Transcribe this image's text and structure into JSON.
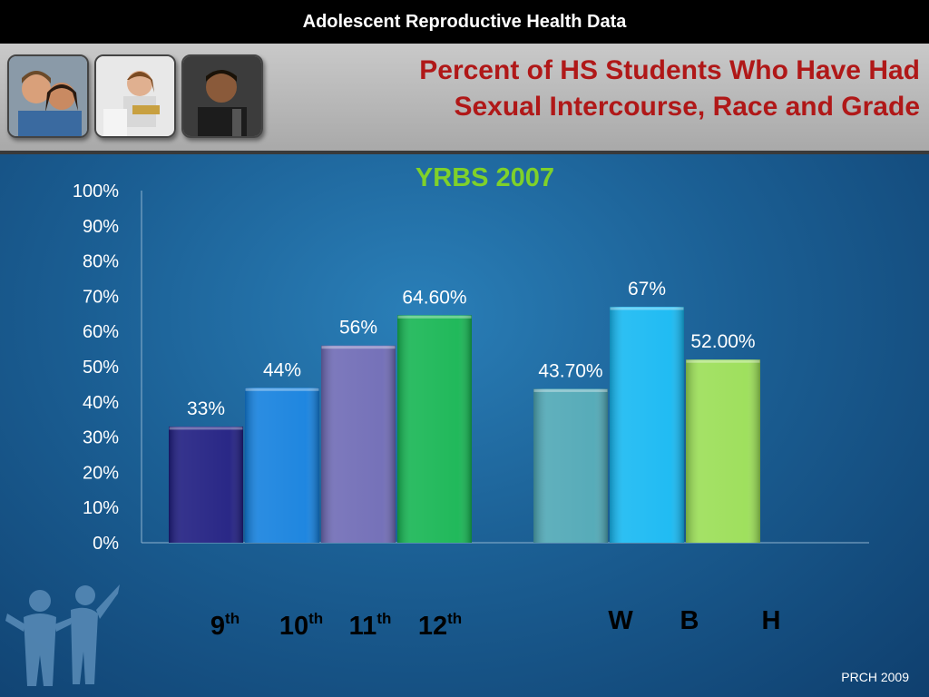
{
  "header": {
    "bar_title": "Adolescent Reproductive Health Data",
    "title_line1": "Percent of HS Students Who Have Had",
    "title_line2": "Sexual Intercourse, Race and Grade",
    "photos": [
      "teen-couple-photo",
      "teen-girl-photo",
      "teen-boy-photo"
    ]
  },
  "footer": {
    "credit": "PRCH 2009"
  },
  "chart_data": {
    "type": "bar",
    "title": "YRBS 2007",
    "ylim": [
      0,
      100
    ],
    "yticks": [
      "0%",
      "10%",
      "20%",
      "30%",
      "40%",
      "50%",
      "60%",
      "70%",
      "80%",
      "90%",
      "100%"
    ],
    "groups": [
      {
        "categories": [
          {
            "base": "9",
            "sup": "th"
          },
          {
            "base": "10",
            "sup": "th"
          },
          {
            "base": "11",
            "sup": "th"
          },
          {
            "base": "12",
            "sup": "th"
          }
        ],
        "values": [
          33,
          44,
          56,
          64.6
        ],
        "labels": [
          "33%",
          "44%",
          "56%",
          "64.60%"
        ],
        "colors": [
          "#1e1c80",
          "#1380de",
          "#6e6ab5",
          "#15b552"
        ]
      },
      {
        "categories": [
          {
            "base": "W",
            "sup": ""
          },
          {
            "base": "B",
            "sup": ""
          },
          {
            "base": "H",
            "sup": ""
          }
        ],
        "values": [
          43.7,
          67,
          52
        ],
        "labels": [
          "43.70%",
          "67%",
          "52.00%"
        ],
        "colors": [
          "#4ea7b5",
          "#15b8f2",
          "#9ade55"
        ]
      }
    ],
    "grid": false,
    "legend": "none"
  }
}
